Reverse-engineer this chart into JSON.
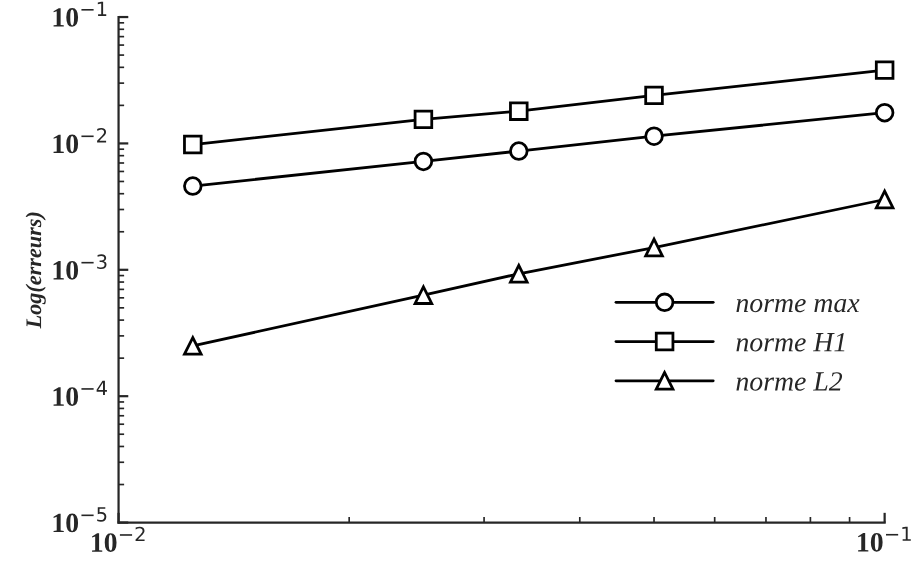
{
  "chart_data": {
    "type": "line",
    "ylabel": "Log(erreurs)",
    "log": "xy",
    "legend": "bottom right",
    "grid": false,
    "x": [
      0.0125,
      0.025,
      0.0333,
      0.05,
      0.1
    ],
    "xlim": [
      0.01,
      0.1
    ],
    "xticks": [
      {
        "value": 0.01,
        "label": "10$^{−2}$"
      },
      {
        "value": 0.1,
        "label": "10$^{−1}$"
      }
    ],
    "ylim": [
      1e-05,
      0.1
    ],
    "yticks": [
      {
        "value": 1e-05,
        "label": "10$^{−5}$"
      },
      {
        "value": 0.0001,
        "label": "10$^{−4}$"
      },
      {
        "value": 0.001,
        "label": "10$^{−3}$"
      },
      {
        "value": 0.01,
        "label": "10$^{−2}$"
      },
      {
        "value": 0.1,
        "label": "10$^{−1}$"
      }
    ],
    "series": [
      {
        "name": "norme max",
        "color": "#000000",
        "marker": "circle",
        "values": [
          0.0046,
          0.0072,
          0.0087,
          0.0114,
          0.0175
        ]
      },
      {
        "name": "norme H1",
        "color": "#000000",
        "marker": "square",
        "values": [
          0.0098,
          0.0155,
          0.018,
          0.024,
          0.038
        ]
      },
      {
        "name": "norme L2",
        "color": "#000000",
        "marker": "triangle",
        "values": [
          0.00025,
          0.00063,
          0.00093,
          0.0015,
          0.0036
        ]
      }
    ]
  }
}
